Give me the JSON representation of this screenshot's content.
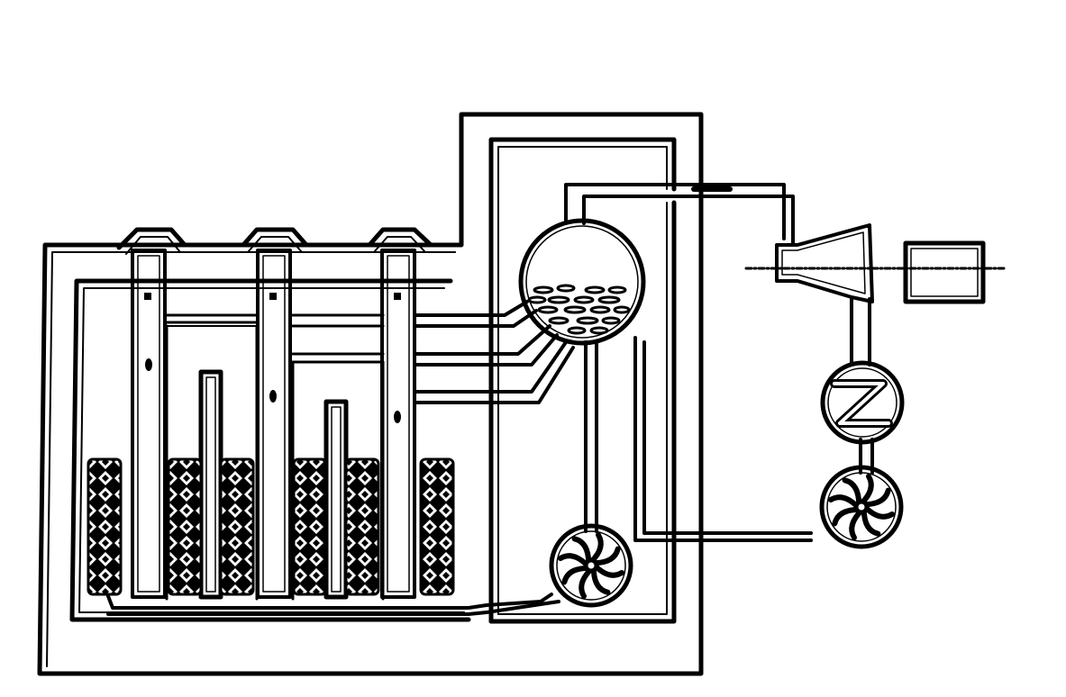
{
  "diagram": {
    "components": [
      {
        "id": "reactor-building",
        "kind": "containment"
      },
      {
        "id": "reactor-channels",
        "kind": "fuel-channel",
        "count": 3
      },
      {
        "id": "fuel-assemblies",
        "kind": "fuel-bundle",
        "count": 6
      },
      {
        "id": "control-rods",
        "kind": "control-rod",
        "count": 2
      },
      {
        "id": "steam-drum",
        "kind": "separator"
      },
      {
        "id": "main-circulation-pump",
        "kind": "pump"
      },
      {
        "id": "turbine",
        "kind": "turbine"
      },
      {
        "id": "generator",
        "kind": "generator"
      },
      {
        "id": "condenser",
        "kind": "heat-exchanger"
      },
      {
        "id": "feedwater-pump",
        "kind": "pump"
      }
    ],
    "labels": []
  },
  "colors": {
    "ink": "#000000",
    "paper": "#ffffff"
  }
}
